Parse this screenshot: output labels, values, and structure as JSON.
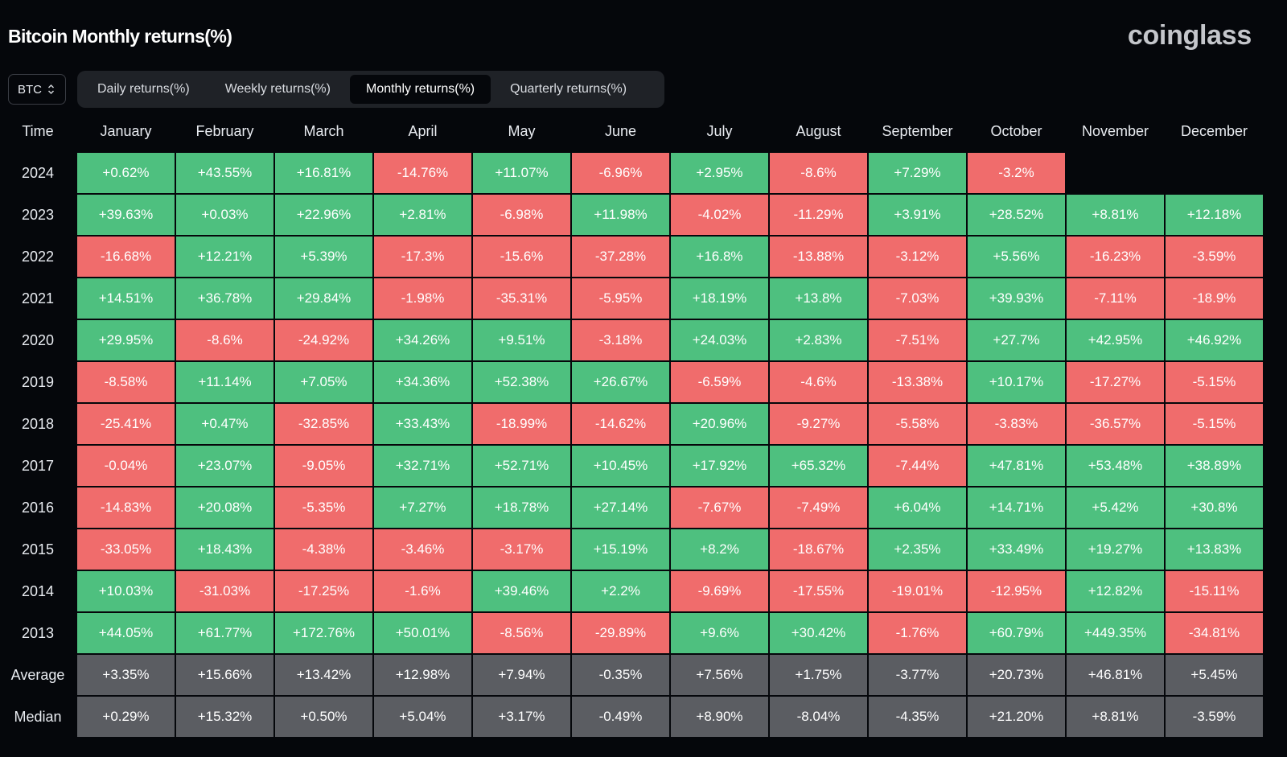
{
  "title": "Bitcoin Monthly returns(%)",
  "brand": "coinglass",
  "coin_select": {
    "value": "BTC"
  },
  "tabs": [
    {
      "label": "Daily returns(%)",
      "active": false
    },
    {
      "label": "Weekly returns(%)",
      "active": false
    },
    {
      "label": "Monthly returns(%)",
      "active": true
    },
    {
      "label": "Quarterly returns(%)",
      "active": false
    }
  ],
  "colors": {
    "positive": "#4ec07f",
    "negative": "#f06c6c",
    "stat": "#5b5d62",
    "background": "#05070b"
  },
  "table": {
    "time_header": "Time",
    "months": [
      "January",
      "February",
      "March",
      "April",
      "May",
      "June",
      "July",
      "August",
      "September",
      "October",
      "November",
      "December"
    ],
    "rows": [
      {
        "label": "2024",
        "kind": "year",
        "values": [
          "+0.62%",
          "+43.55%",
          "+16.81%",
          "-14.76%",
          "+11.07%",
          "-6.96%",
          "+2.95%",
          "-8.6%",
          "+7.29%",
          "-3.2%",
          "",
          ""
        ]
      },
      {
        "label": "2023",
        "kind": "year",
        "values": [
          "+39.63%",
          "+0.03%",
          "+22.96%",
          "+2.81%",
          "-6.98%",
          "+11.98%",
          "-4.02%",
          "-11.29%",
          "+3.91%",
          "+28.52%",
          "+8.81%",
          "+12.18%"
        ]
      },
      {
        "label": "2022",
        "kind": "year",
        "values": [
          "-16.68%",
          "+12.21%",
          "+5.39%",
          "-17.3%",
          "-15.6%",
          "-37.28%",
          "+16.8%",
          "-13.88%",
          "-3.12%",
          "+5.56%",
          "-16.23%",
          "-3.59%"
        ]
      },
      {
        "label": "2021",
        "kind": "year",
        "values": [
          "+14.51%",
          "+36.78%",
          "+29.84%",
          "-1.98%",
          "-35.31%",
          "-5.95%",
          "+18.19%",
          "+13.8%",
          "-7.03%",
          "+39.93%",
          "-7.11%",
          "-18.9%"
        ]
      },
      {
        "label": "2020",
        "kind": "year",
        "values": [
          "+29.95%",
          "-8.6%",
          "-24.92%",
          "+34.26%",
          "+9.51%",
          "-3.18%",
          "+24.03%",
          "+2.83%",
          "-7.51%",
          "+27.7%",
          "+42.95%",
          "+46.92%"
        ]
      },
      {
        "label": "2019",
        "kind": "year",
        "values": [
          "-8.58%",
          "+11.14%",
          "+7.05%",
          "+34.36%",
          "+52.38%",
          "+26.67%",
          "-6.59%",
          "-4.6%",
          "-13.38%",
          "+10.17%",
          "-17.27%",
          "-5.15%"
        ]
      },
      {
        "label": "2018",
        "kind": "year",
        "values": [
          "-25.41%",
          "+0.47%",
          "-32.85%",
          "+33.43%",
          "-18.99%",
          "-14.62%",
          "+20.96%",
          "-9.27%",
          "-5.58%",
          "-3.83%",
          "-36.57%",
          "-5.15%"
        ]
      },
      {
        "label": "2017",
        "kind": "year",
        "values": [
          "-0.04%",
          "+23.07%",
          "-9.05%",
          "+32.71%",
          "+52.71%",
          "+10.45%",
          "+17.92%",
          "+65.32%",
          "-7.44%",
          "+47.81%",
          "+53.48%",
          "+38.89%"
        ]
      },
      {
        "label": "2016",
        "kind": "year",
        "values": [
          "-14.83%",
          "+20.08%",
          "-5.35%",
          "+7.27%",
          "+18.78%",
          "+27.14%",
          "-7.67%",
          "-7.49%",
          "+6.04%",
          "+14.71%",
          "+5.42%",
          "+30.8%"
        ]
      },
      {
        "label": "2015",
        "kind": "year",
        "values": [
          "-33.05%",
          "+18.43%",
          "-4.38%",
          "-3.46%",
          "-3.17%",
          "+15.19%",
          "+8.2%",
          "-18.67%",
          "+2.35%",
          "+33.49%",
          "+19.27%",
          "+13.83%"
        ]
      },
      {
        "label": "2014",
        "kind": "year",
        "values": [
          "+10.03%",
          "-31.03%",
          "-17.25%",
          "-1.6%",
          "+39.46%",
          "+2.2%",
          "-9.69%",
          "-17.55%",
          "-19.01%",
          "-12.95%",
          "+12.82%",
          "-15.11%"
        ]
      },
      {
        "label": "2013",
        "kind": "year",
        "values": [
          "+44.05%",
          "+61.77%",
          "+172.76%",
          "+50.01%",
          "-8.56%",
          "-29.89%",
          "+9.6%",
          "+30.42%",
          "-1.76%",
          "+60.79%",
          "+449.35%",
          "-34.81%"
        ]
      },
      {
        "label": "Average",
        "kind": "stat",
        "values": [
          "+3.35%",
          "+15.66%",
          "+13.42%",
          "+12.98%",
          "+7.94%",
          "-0.35%",
          "+7.56%",
          "+1.75%",
          "-3.77%",
          "+20.73%",
          "+46.81%",
          "+5.45%"
        ]
      },
      {
        "label": "Median",
        "kind": "stat",
        "values": [
          "+0.29%",
          "+15.32%",
          "+0.50%",
          "+5.04%",
          "+3.17%",
          "-0.49%",
          "+8.90%",
          "-8.04%",
          "-4.35%",
          "+21.20%",
          "+8.81%",
          "-3.59%"
        ]
      }
    ]
  }
}
